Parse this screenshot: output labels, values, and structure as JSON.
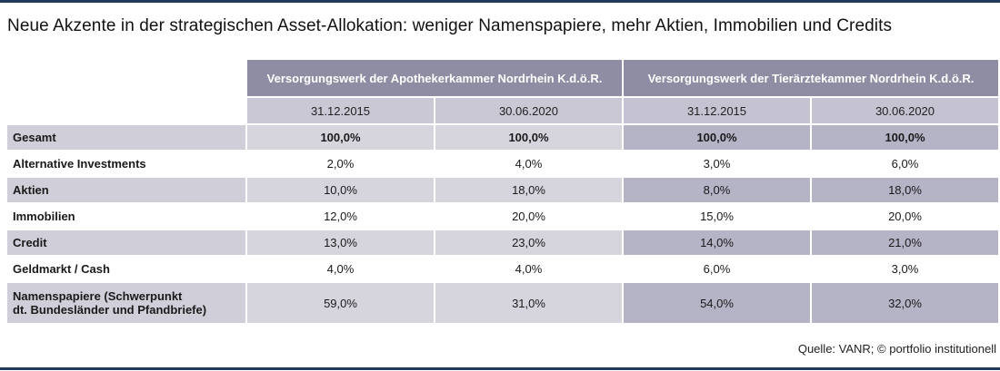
{
  "title": "Neue Akzente in der strategischen Asset-Allokation: weniger Namenspapiere, mehr Aktien, Immobilien und Credits",
  "columns": {
    "group1": "Versorgungswerk der Apothekerkammer Nordrhein K.d.ö.R.",
    "group2": "Versorgungswerk der Tierärztekammer Nordrhein K.d.ö.R.",
    "dates": [
      "31.12.2015",
      "30.06.2020",
      "31.12.2015",
      "30.06.2020"
    ]
  },
  "rows": [
    {
      "label": "Gesamt",
      "values": [
        "100,0%",
        "100,0%",
        "100,0%",
        "100,0%"
      ]
    },
    {
      "label": "Alternative Investments",
      "values": [
        "2,0%",
        "4,0%",
        "3,0%",
        "6,0%"
      ]
    },
    {
      "label": "Aktien",
      "values": [
        "10,0%",
        "18,0%",
        "8,0%",
        "18,0%"
      ]
    },
    {
      "label": "Immobilien",
      "values": [
        "12,0%",
        "20,0%",
        "15,0%",
        "20,0%"
      ]
    },
    {
      "label": "Credit",
      "values": [
        "13,0%",
        "23,0%",
        "14,0%",
        "21,0%"
      ]
    },
    {
      "label": "Geldmarkt / Cash",
      "values": [
        "4,0%",
        "4,0%",
        "6,0%",
        "3,0%"
      ]
    },
    {
      "label_line1": "Namenspapiere (Schwerpunkt",
      "label_line2": "dt. Bundesländer und Pfandbriefe)",
      "values": [
        "59,0%",
        "31,0%",
        "54,0%",
        "32,0%"
      ]
    }
  ],
  "source": "Quelle: VANR; © portfolio institutionell"
}
